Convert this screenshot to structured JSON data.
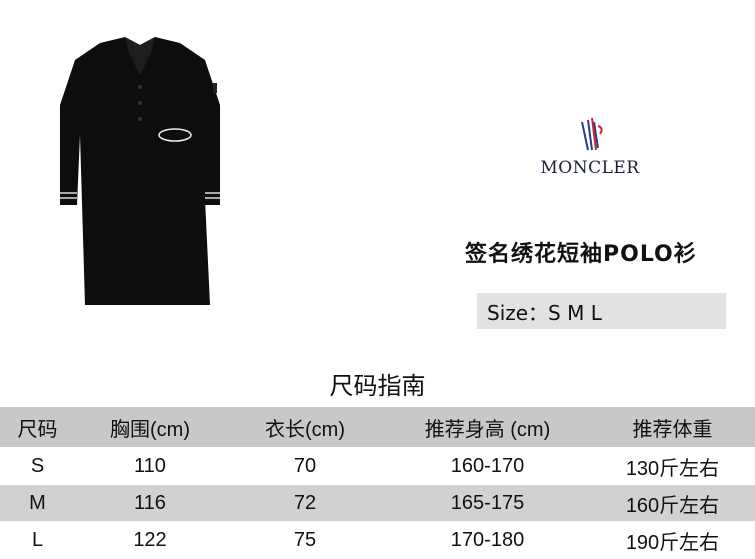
{
  "brand": {
    "name": "MONCLER"
  },
  "product": {
    "title": "签名绣花短袖POLO衫",
    "size_label": "Size：S M L"
  },
  "size_guide": {
    "title": "尺码指南",
    "headers": [
      "尺码",
      "胸围(cm)",
      "衣长(cm)",
      "推荐身高 (cm)",
      "推荐体重"
    ],
    "rows": [
      [
        "S",
        "110",
        "70",
        "160-170",
        "130斤左右"
      ],
      [
        "M",
        "116",
        "72",
        "165-175",
        "160斤左右"
      ],
      [
        "L",
        "122",
        "75",
        "170-180",
        "190斤左右"
      ]
    ]
  },
  "colors": {
    "shirt": "#0d0d0d",
    "row_gray": "#d2d1d1",
    "header_gray": "#c9c8c8"
  }
}
